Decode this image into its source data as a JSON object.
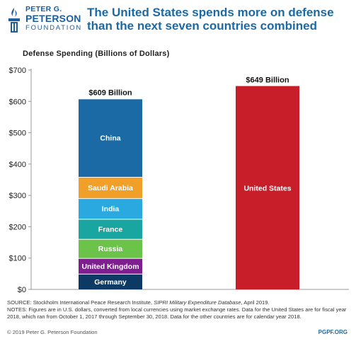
{
  "header": {
    "logo_line1": "PETER G.",
    "logo_line2": "PETERSON",
    "logo_line3": "FOUNDATION",
    "headline": "The United States spends more on defense than the next seven countries combined"
  },
  "chart_data": {
    "type": "bar",
    "stacked": true,
    "subtitle": "Defense Spending (Billions of Dollars)",
    "ylim": [
      0,
      700
    ],
    "yticks": [
      0,
      100,
      200,
      300,
      400,
      500,
      600,
      700
    ],
    "ytick_labels": [
      "$0",
      "$100",
      "$200",
      "$300",
      "$400",
      "$500",
      "$600",
      "$700"
    ],
    "grid": false,
    "bars": [
      {
        "total_label": "$609 Billion",
        "total": 609,
        "segments": [
          {
            "label": "Germany",
            "value": 50,
            "color": "#0d3a64"
          },
          {
            "label": "United Kingdom",
            "value": 50,
            "color": "#7d1f8e"
          },
          {
            "label": "Russia",
            "value": 61,
            "color": "#6cc34a"
          },
          {
            "label": "France",
            "value": 64,
            "color": "#1aa6a0"
          },
          {
            "label": "India",
            "value": 66,
            "color": "#29a9e0"
          },
          {
            "label": "Saudi Arabia",
            "value": 68,
            "color": "#f0a028"
          },
          {
            "label": "China",
            "value": 250,
            "color": "#1b6aa5"
          }
        ]
      },
      {
        "total_label": "$649 Billion",
        "total": 649,
        "segments": [
          {
            "label": "United States",
            "value": 649,
            "color": "#c81e2a"
          }
        ]
      }
    ]
  },
  "notes": {
    "source_prefix": "SOURCE: Stockholm International Peace Research Institute, ",
    "source_italic": "SIPRI Military Expenditure Database",
    "source_suffix": ", April 2019.",
    "notes_text": "NOTES: Figures are in U.S. dollars, converted from local currencies using market exchange rates. Data for the United States are for fiscal year 2018, which ran from October 1, 2017 through September 30, 2018. Data for the other countries are for calendar year 2018."
  },
  "footer": {
    "copyright": "© 2019 Peter G. Peterson Foundation",
    "site": "PGPF.ORG"
  }
}
